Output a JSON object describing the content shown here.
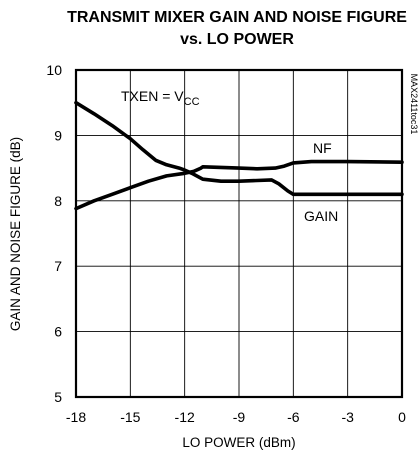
{
  "chart_data": {
    "type": "line",
    "title_lines": [
      "TRANSMIT MIXER GAIN AND NOISE FIGURE",
      "vs. LO POWER"
    ],
    "xlabel": "LO POWER (dBm)",
    "ylabel": "GAIN AND NOISE FIGURE (dB)",
    "xlim": [
      -18,
      0
    ],
    "ylim": [
      5,
      10
    ],
    "xticks": [
      -18,
      -15,
      -12,
      -9,
      -6,
      -3,
      0
    ],
    "yticks": [
      5,
      6,
      7,
      8,
      9,
      10
    ],
    "grid": true,
    "condition_label": {
      "main": "TXEN = V",
      "sub": "CC"
    },
    "part_code": "MAX2411toc31",
    "series": [
      {
        "name": "NF",
        "points": [
          [
            -18,
            7.88
          ],
          [
            -17,
            8.0
          ],
          [
            -16,
            8.1
          ],
          [
            -15,
            8.2
          ],
          [
            -14,
            8.3
          ],
          [
            -13,
            8.38
          ],
          [
            -12,
            8.42
          ],
          [
            -11.5,
            8.45
          ],
          [
            -11.1,
            8.5
          ],
          [
            -11,
            8.52
          ],
          [
            -10,
            8.51
          ],
          [
            -9,
            8.5
          ],
          [
            -8,
            8.49
          ],
          [
            -7,
            8.5
          ],
          [
            -6.5,
            8.53
          ],
          [
            -6,
            8.58
          ],
          [
            -5,
            8.6
          ],
          [
            -3,
            8.6
          ],
          [
            0,
            8.59
          ]
        ]
      },
      {
        "name": "GAIN",
        "points": [
          [
            -18,
            9.5
          ],
          [
            -17,
            9.33
          ],
          [
            -16,
            9.15
          ],
          [
            -15,
            8.95
          ],
          [
            -14.3,
            8.78
          ],
          [
            -13.6,
            8.62
          ],
          [
            -13,
            8.55
          ],
          [
            -12.3,
            8.5
          ],
          [
            -12,
            8.47
          ],
          [
            -11.6,
            8.42
          ],
          [
            -11,
            8.33
          ],
          [
            -10,
            8.3
          ],
          [
            -9,
            8.3
          ],
          [
            -8,
            8.31
          ],
          [
            -7.2,
            8.32
          ],
          [
            -6.8,
            8.26
          ],
          [
            -6.3,
            8.15
          ],
          [
            -6,
            8.1
          ],
          [
            -5,
            8.1
          ],
          [
            0,
            8.1
          ]
        ]
      }
    ]
  }
}
